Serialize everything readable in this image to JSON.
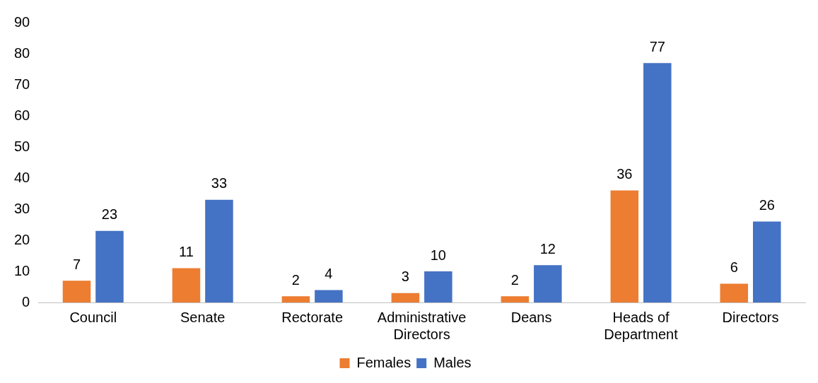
{
  "chart_data": {
    "type": "bar",
    "categories": [
      "Council",
      "Senate",
      "Rectorate",
      "Administrative Directors",
      "Deans",
      "Heads of Department",
      "Directors"
    ],
    "series": [
      {
        "name": "Females",
        "color": "#ed7d31",
        "values": [
          7,
          11,
          2,
          3,
          2,
          36,
          6
        ]
      },
      {
        "name": "Males",
        "color": "#4472c4",
        "values": [
          23,
          33,
          4,
          10,
          12,
          77,
          26
        ]
      }
    ],
    "ylim": [
      0,
      90
    ],
    "yticks": [
      0,
      10,
      20,
      30,
      40,
      50,
      60,
      70,
      80,
      90
    ],
    "grid": false,
    "legend": "bottom",
    "data_labels": true
  }
}
